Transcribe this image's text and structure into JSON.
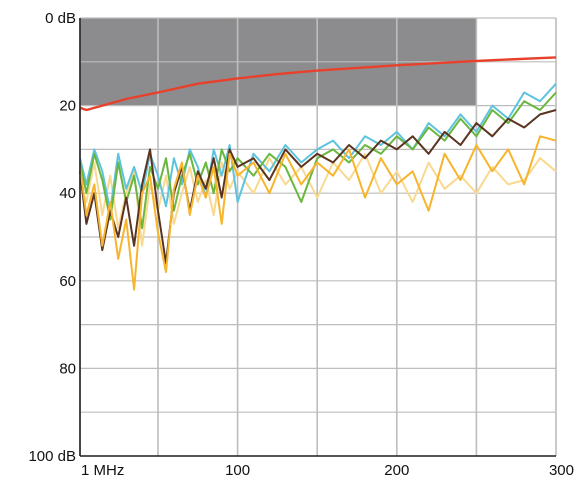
{
  "chart_data": {
    "type": "line",
    "title": "",
    "xlabel": "",
    "ylabel": "",
    "x_unit": "MHz",
    "y_unit": "dB",
    "xlim": [
      1,
      300
    ],
    "ylim": [
      0,
      100
    ],
    "y_inverted": true,
    "grid": true,
    "legend": "none",
    "x_ticks": [
      {
        "value": 1,
        "label": "1 MHz"
      },
      {
        "value": 100,
        "label": "100"
      },
      {
        "value": 200,
        "label": "200"
      },
      {
        "value": 300,
        "label": "300"
      }
    ],
    "y_ticks": [
      {
        "value": 0,
        "label": "0 dB"
      },
      {
        "value": 20,
        "label": "20"
      },
      {
        "value": 40,
        "label": "40"
      },
      {
        "value": 60,
        "label": "60"
      },
      {
        "value": 80,
        "label": "80"
      },
      {
        "value": 100,
        "label": "100 dB"
      }
    ],
    "x_gridlines": [
      1,
      50,
      100,
      150,
      200,
      250,
      300
    ],
    "y_gridlines": [
      0,
      10,
      20,
      30,
      40,
      50,
      60,
      70,
      80,
      90,
      100
    ],
    "shaded_region": {
      "x": [
        1,
        250
      ],
      "y": [
        0,
        20
      ],
      "color": "#8c8c8e"
    },
    "colors": {
      "limit": "#e8402a",
      "brown": "#5a3420",
      "green": "#6ab73d",
      "blue": "#5ec3de",
      "orange": "#f7b52e",
      "light_orange": "#f9d98f"
    },
    "series": [
      {
        "color": "#e8402a",
        "x": [
          1,
          5,
          15,
          30,
          50,
          75,
          100,
          125,
          150,
          200,
          250,
          300
        ],
        "y": [
          20.5,
          21,
          20,
          18.5,
          17,
          15,
          13.8,
          12.8,
          12,
          10.8,
          9.8,
          9
        ]
      },
      {
        "color": "#f9d98f",
        "x": [
          1,
          5,
          10,
          15,
          20,
          25,
          30,
          35,
          40,
          45,
          50,
          55,
          60,
          65,
          70,
          75,
          80,
          85,
          90,
          95,
          100,
          110,
          120,
          130,
          140,
          150,
          160,
          170,
          180,
          190,
          200,
          210,
          220,
          230,
          240,
          250,
          260,
          270,
          280,
          290,
          300
        ],
        "y": [
          38,
          42,
          33,
          45,
          36,
          48,
          40,
          35,
          52,
          38,
          44,
          36,
          47,
          40,
          34,
          42,
          37,
          45,
          33,
          39,
          35,
          40,
          32,
          38,
          34,
          41,
          33,
          37,
          31,
          40,
          35,
          42,
          33,
          39,
          36,
          40,
          34,
          38,
          37,
          32,
          35
        ]
      },
      {
        "color": "#5ec3de",
        "x": [
          1,
          5,
          10,
          15,
          20,
          25,
          30,
          35,
          40,
          45,
          50,
          55,
          60,
          65,
          70,
          75,
          80,
          85,
          90,
          95,
          100,
          110,
          120,
          130,
          140,
          150,
          160,
          170,
          180,
          190,
          200,
          210,
          220,
          230,
          240,
          250,
          260,
          270,
          280,
          290,
          300
        ],
        "y": [
          32,
          38,
          30,
          35,
          44,
          31,
          39,
          34,
          40,
          31,
          36,
          43,
          32,
          38,
          30,
          34,
          41,
          30,
          36,
          29,
          42,
          31,
          35,
          29,
          33,
          30,
          28,
          32,
          27,
          29,
          26,
          30,
          24,
          27,
          22,
          26,
          20,
          23,
          17,
          19,
          15
        ]
      },
      {
        "color": "#6ab73d",
        "x": [
          1,
          5,
          10,
          15,
          20,
          25,
          30,
          35,
          40,
          45,
          50,
          55,
          60,
          65,
          70,
          75,
          80,
          85,
          90,
          95,
          100,
          110,
          120,
          130,
          140,
          150,
          160,
          170,
          180,
          190,
          200,
          210,
          220,
          230,
          240,
          250,
          260,
          270,
          280,
          290,
          300
        ],
        "y": [
          33,
          40,
          31,
          37,
          46,
          33,
          42,
          36,
          48,
          34,
          39,
          32,
          44,
          36,
          31,
          38,
          33,
          40,
          30,
          35,
          32,
          36,
          31,
          34,
          42,
          32,
          30,
          33,
          29,
          31,
          27,
          30,
          25,
          28,
          23,
          27,
          21,
          24,
          19,
          21,
          17
        ]
      },
      {
        "color": "#5a3420",
        "x": [
          1,
          5,
          10,
          15,
          20,
          25,
          30,
          35,
          40,
          45,
          50,
          55,
          60,
          65,
          70,
          75,
          80,
          85,
          90,
          95,
          100,
          110,
          120,
          130,
          140,
          150,
          160,
          170,
          180,
          190,
          200,
          210,
          220,
          230,
          240,
          250,
          260,
          270,
          280,
          290,
          300
        ],
        "y": [
          35,
          47,
          40,
          53,
          44,
          50,
          41,
          52,
          38,
          30,
          44,
          56,
          40,
          34,
          44,
          35,
          39,
          32,
          41,
          30,
          34,
          32,
          37,
          30,
          34,
          31,
          33,
          29,
          32,
          28,
          30,
          27,
          31,
          26,
          29,
          24,
          27,
          23,
          25,
          22,
          21
        ]
      },
      {
        "color": "#f7b52e",
        "x": [
          1,
          5,
          10,
          15,
          20,
          25,
          30,
          35,
          40,
          45,
          50,
          55,
          60,
          65,
          70,
          75,
          80,
          85,
          90,
          95,
          100,
          110,
          120,
          130,
          140,
          150,
          160,
          170,
          180,
          190,
          200,
          210,
          220,
          230,
          240,
          250,
          260,
          270,
          280,
          290,
          300
        ],
        "y": [
          34,
          45,
          38,
          52,
          42,
          55,
          46,
          62,
          40,
          36,
          49,
          58,
          39,
          33,
          45,
          36,
          41,
          34,
          47,
          31,
          36,
          33,
          40,
          31,
          38,
          33,
          36,
          30,
          41,
          32,
          38,
          35,
          44,
          31,
          37,
          29,
          35,
          30,
          38,
          27,
          28
        ]
      }
    ]
  }
}
